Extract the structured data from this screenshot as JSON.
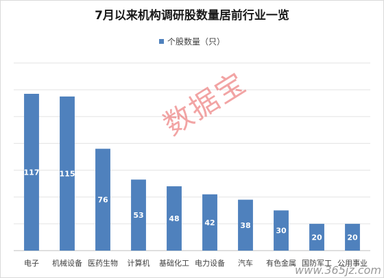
{
  "chart_data": {
    "type": "bar",
    "title": "7月以来机构调研股数量居前行业一览",
    "legend": "个股数量（只）",
    "categories": [
      "电子",
      "机械设备",
      "医药生物",
      "计算机",
      "基础化工",
      "电力设备",
      "汽车",
      "有色金属",
      "国防军工",
      "公用事业"
    ],
    "series": [
      {
        "name": "个股数量（只）",
        "values": [
          117,
          115,
          76,
          53,
          48,
          42,
          38,
          30,
          20,
          20
        ]
      }
    ],
    "ylim": [
      0,
      140
    ],
    "grid": true,
    "bar_color": "#4f81bd",
    "legend_position": "top"
  },
  "watermark": "数据宝",
  "site": "www.365jz.com"
}
